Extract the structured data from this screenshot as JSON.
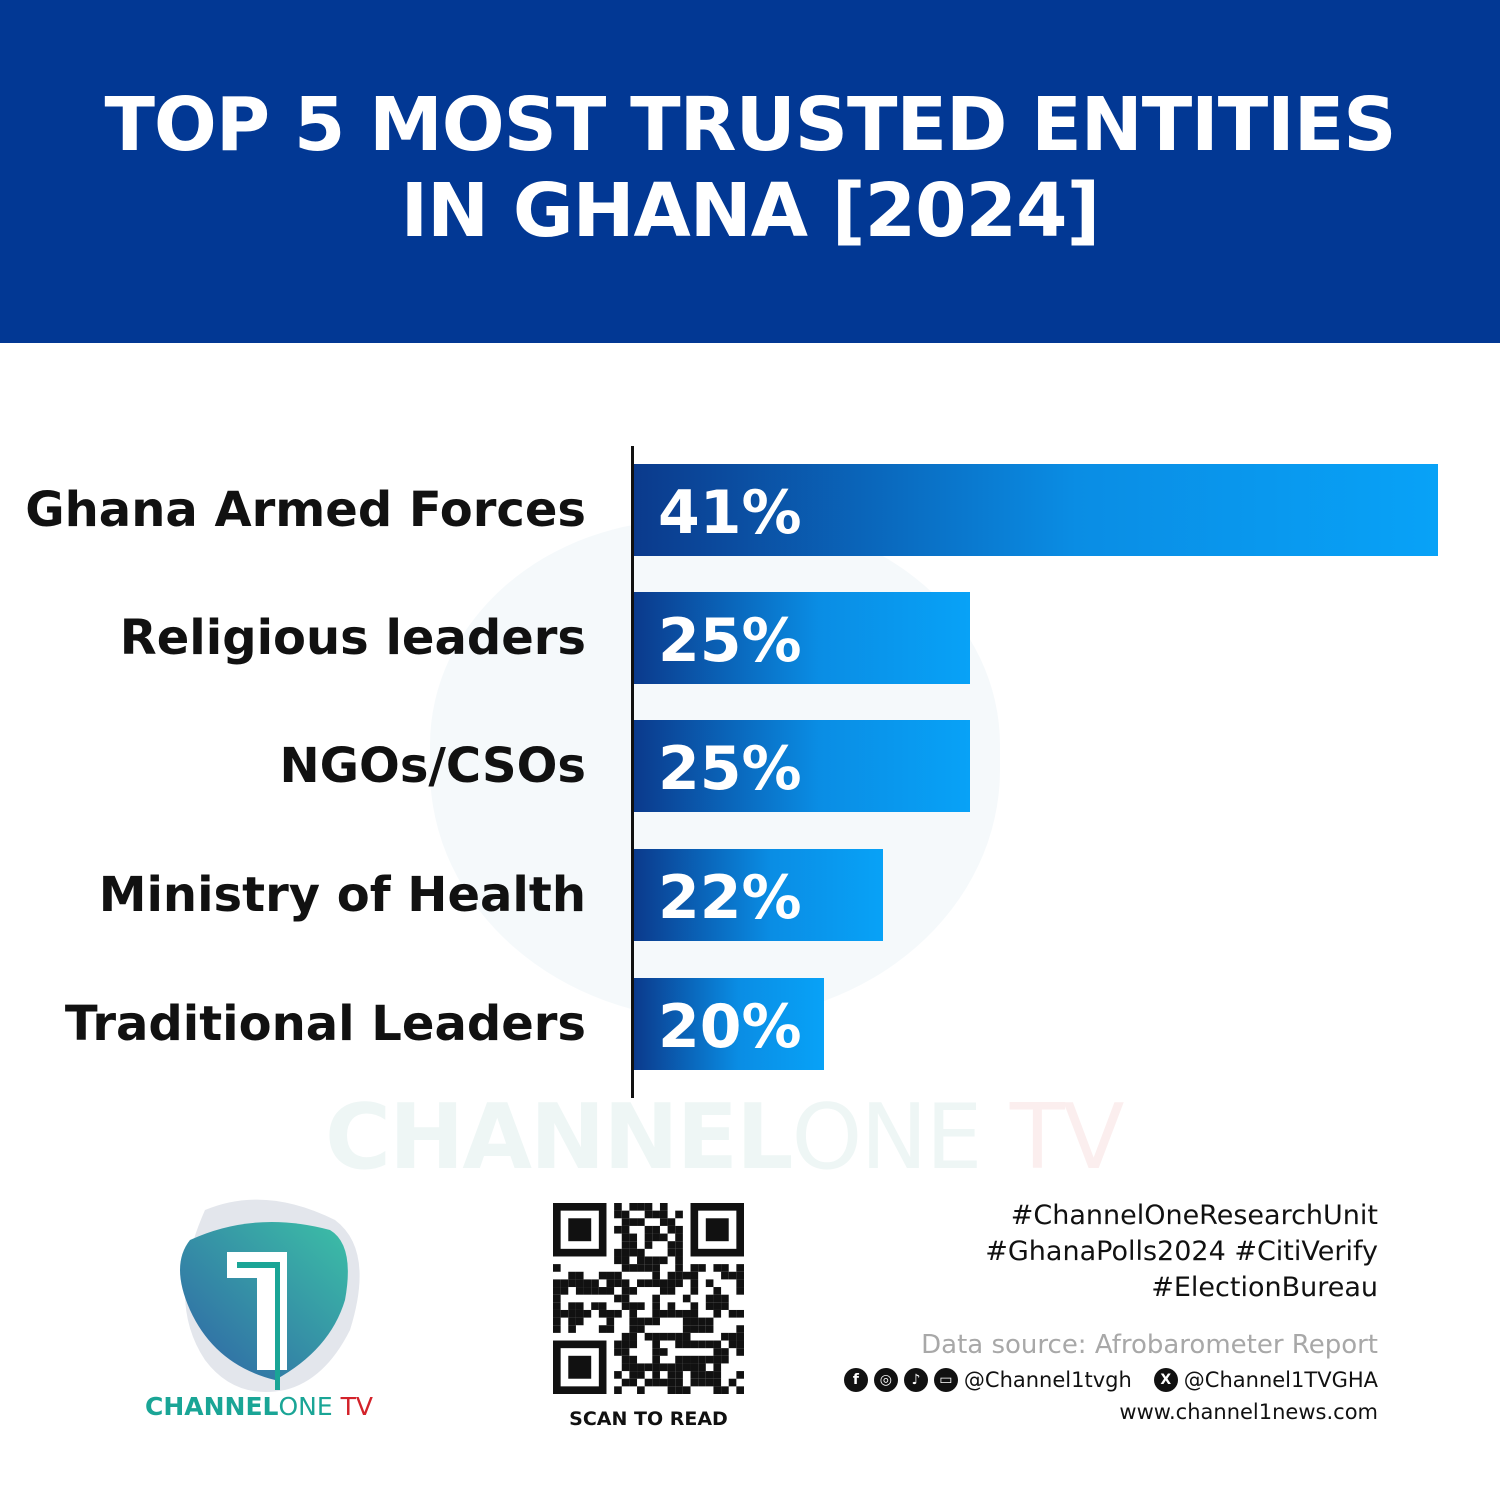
{
  "header": {
    "title_line1": "TOP 5 MOST TRUSTED ENTITIES",
    "title_line2": "IN GHANA [2024]"
  },
  "chart_data": {
    "type": "bar",
    "orientation": "horizontal",
    "title": "TOP 5 MOST TRUSTED ENTITIES IN GHANA [2024]",
    "categories": [
      "Ghana Armed Forces",
      "Religious leaders",
      "NGOs/CSOs",
      "Ministry of Health",
      "Traditional Leaders"
    ],
    "values": [
      41,
      25,
      25,
      22,
      20
    ],
    "value_labels": [
      "41%",
      "25%",
      "25%",
      "22%",
      "20%"
    ],
    "grid": false,
    "colors": {
      "bar_start": "#0b3a8c",
      "bar_end": "#08a2f7",
      "header": "#023894"
    }
  },
  "watermark": {
    "brand_a": "CHANNEL",
    "brand_b": "ONE",
    "brand_c": "TV"
  },
  "logo": {
    "text_a": "CHANNEL",
    "text_b": "ONE",
    "text_c": " TV",
    "color_teal": "#1aa596",
    "color_red": "#d3222a"
  },
  "qr": {
    "caption": "SCAN TO READ"
  },
  "footer": {
    "tags": [
      "#ChannelOneResearchUnit",
      "#GhanaPolls2024 #CitiVerify",
      "#ElectionBureau"
    ],
    "source": "Data source: Afrobarometer Report",
    "social_icons": [
      "facebook-icon",
      "instagram-icon",
      "tiktok-icon",
      "youtube-icon",
      "x-icon"
    ],
    "handle_main": "@Channel1tvgh",
    "handle_x": "@Channel1TVGHA",
    "website": "www.channel1news.com"
  }
}
